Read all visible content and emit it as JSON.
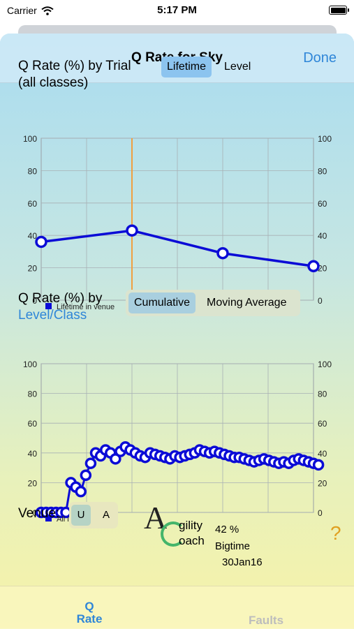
{
  "status": {
    "carrier": "Carrier",
    "time": "5:17 PM"
  },
  "nav": {
    "title": "Q Rate for Sky",
    "done_label": "Done"
  },
  "section1": {
    "title_line1": "Q Rate (%) by Trial",
    "title_line2": "(all classes)",
    "segments": [
      "Lifetime",
      "Level"
    ],
    "selected": "Lifetime"
  },
  "section2": {
    "title_line1": "Q Rate (%) by",
    "title_line2": "Level/Class",
    "segments": [
      "Cumulative",
      "Moving Average"
    ],
    "selected": "Cumulative"
  },
  "venue": {
    "label": "Venue:",
    "options": [
      "U",
      "A"
    ],
    "selected": "U"
  },
  "logo": {
    "line1": "gility",
    "line2": "oach"
  },
  "stats": {
    "rate": "42 %",
    "name": "Bigtime",
    "date": "30Jan16"
  },
  "tabs": [
    {
      "line1": "Q",
      "line2": "Rate",
      "active": true
    },
    {
      "line1": "Faults",
      "line2": "",
      "active": false
    }
  ],
  "colors": {
    "accent": "#2f86d8",
    "series": "#0b0bd6",
    "marker": "#f0a040",
    "help": "#e0a020"
  },
  "chart_data": [
    {
      "type": "line",
      "ylim": [
        0,
        100
      ],
      "yticks": [
        "0",
        "20",
        "40",
        "60",
        "80",
        "100"
      ],
      "x": [
        0,
        1,
        2,
        3
      ],
      "xlim": [
        0,
        3
      ],
      "series": [
        {
          "name": "Lifetime in venue",
          "values": [
            36,
            43,
            29,
            21
          ]
        }
      ],
      "marker_x": 1,
      "legend": "bottom-left",
      "grid": true
    },
    {
      "type": "line",
      "ylim": [
        0,
        100
      ],
      "yticks": [
        "0",
        "20",
        "40",
        "60",
        "80",
        "100"
      ],
      "xlim": [
        0,
        55
      ],
      "series": [
        {
          "name": "All in venue",
          "values": [
            0,
            0,
            0,
            0,
            0,
            0,
            20,
            17,
            14,
            25,
            33,
            40,
            38,
            42,
            40,
            36,
            41,
            44,
            42,
            40,
            38,
            37,
            40,
            39,
            38,
            37,
            36,
            38,
            37,
            38,
            39,
            40,
            42,
            41,
            40,
            41,
            40,
            39,
            38,
            37,
            37,
            36,
            35,
            34,
            35,
            36,
            35,
            34,
            33,
            34,
            33,
            35,
            36,
            35,
            34,
            33,
            32
          ]
        }
      ],
      "legend": "bottom-left",
      "grid": true
    }
  ]
}
